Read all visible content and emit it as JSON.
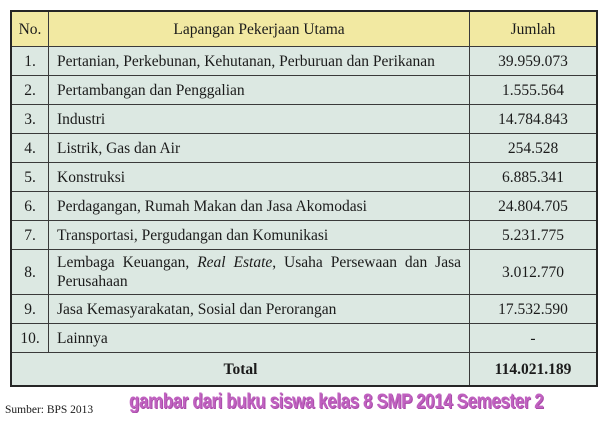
{
  "colors": {
    "header_bg": "#f2e9a2",
    "row_bg": "#dce8e2",
    "border": "#3a3a3a",
    "text": "#1b1b1b",
    "watermark": "#c061c0"
  },
  "table": {
    "headers": {
      "no": "No.",
      "field": "Lapangan Pekerjaan Utama",
      "amount": "Jumlah"
    },
    "rows": [
      {
        "no": "1.",
        "field_parts": [
          {
            "text": "Pertanian, Perkebunan, Kehutanan, Perburuan dan Perikanan"
          }
        ],
        "amount": "39.959.073"
      },
      {
        "no": "2.",
        "field_parts": [
          {
            "text": "Pertambangan dan Penggalian"
          }
        ],
        "amount": "1.555.564"
      },
      {
        "no": "3.",
        "field_parts": [
          {
            "text": "Industri"
          }
        ],
        "amount": "14.784.843"
      },
      {
        "no": "4.",
        "field_parts": [
          {
            "text": "Listrik, Gas dan Air"
          }
        ],
        "amount": "254.528"
      },
      {
        "no": "5.",
        "field_parts": [
          {
            "text": "Konstruksi"
          }
        ],
        "amount": "6.885.341"
      },
      {
        "no": "6.",
        "field_parts": [
          {
            "text": "Perdagangan, Rumah Makan dan Jasa Akomodasi"
          }
        ],
        "amount": "24.804.705"
      },
      {
        "no": "7.",
        "field_parts": [
          {
            "text": "Transportasi, Pergudangan dan Komunikasi"
          }
        ],
        "amount": "5.231.775"
      },
      {
        "no": "8.",
        "field_parts": [
          {
            "text": "Lembaga Keuangan, "
          },
          {
            "text": "Real Estate",
            "italic": true
          },
          {
            "text": ", Usaha Persewaan dan Jasa Perusahaan"
          }
        ],
        "amount": "3.012.770",
        "justify": true
      },
      {
        "no": "9.",
        "field_parts": [
          {
            "text": "Jasa Kemasyarakatan, Sosial dan Perorangan"
          }
        ],
        "amount": "17.532.590"
      },
      {
        "no": "10.",
        "field_parts": [
          {
            "text": "Lainnya"
          }
        ],
        "amount": "-"
      }
    ],
    "total": {
      "label": "Total",
      "amount": "114.021.189"
    }
  },
  "watermark": "gambar dari buku siswa kelas 8 SMP 2014 Semester 2",
  "source_note": "Sumber: BPS 2013"
}
